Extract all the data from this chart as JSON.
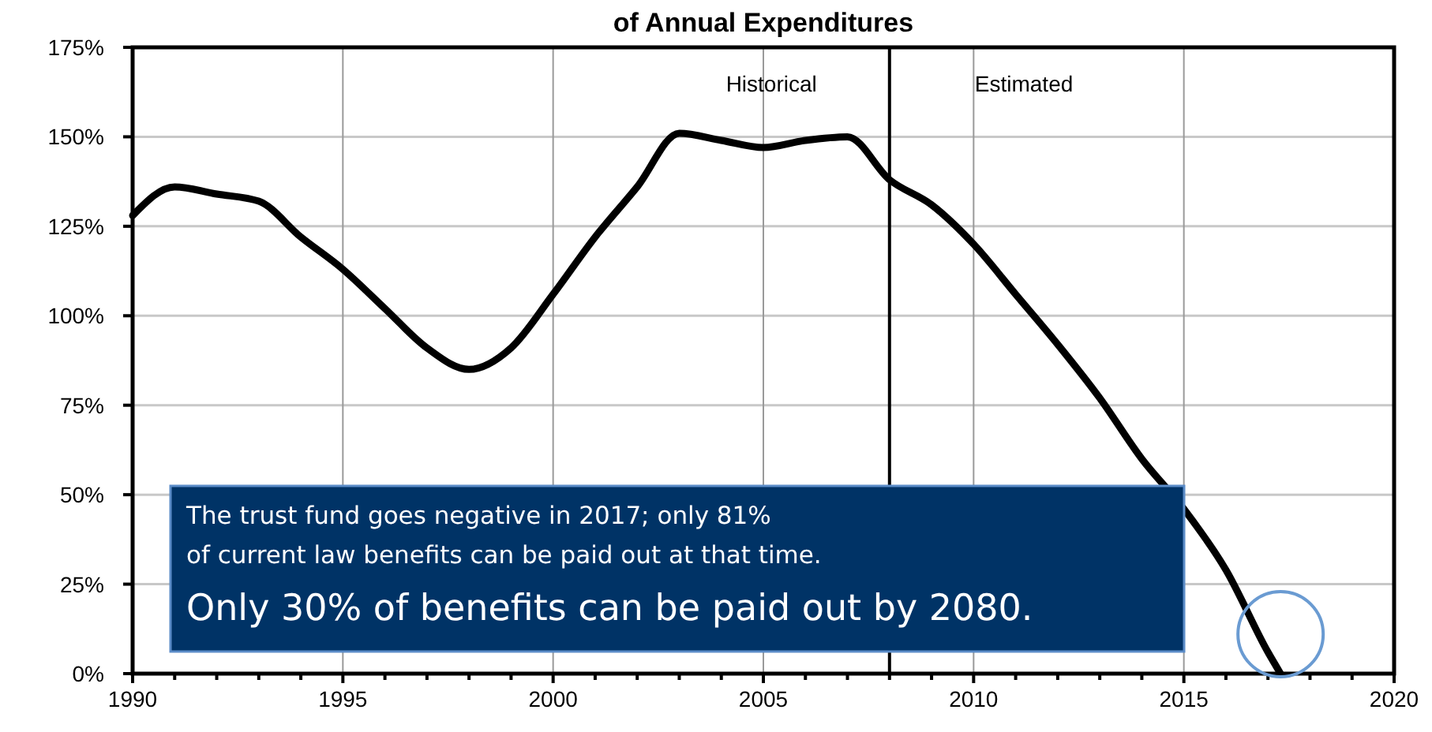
{
  "chart_data": {
    "type": "line",
    "title": "of Annual Expenditures",
    "x": [
      1990,
      1991,
      1992,
      1993,
      1994,
      1995,
      1996,
      1997,
      1998,
      1999,
      2000,
      2001,
      2002,
      2003,
      2004,
      2005,
      2006,
      2007,
      2008,
      2009,
      2010,
      2011,
      2012,
      2013,
      2014,
      2015,
      2016,
      2017,
      2017.3
    ],
    "series": [
      {
        "color": "#000000",
        "values": [
          128,
          136,
          134,
          132,
          122,
          113,
          102,
          91,
          85,
          91,
          106,
          122,
          136,
          151,
          149,
          147,
          149,
          150,
          138,
          131,
          120,
          106,
          92,
          77,
          60,
          46,
          29,
          6,
          0
        ]
      }
    ],
    "xlim": [
      1990,
      2020
    ],
    "xticks": [
      1990,
      {
        "value": 1991,
        "label": null
      },
      {
        "value": 1992,
        "label": null
      },
      {
        "value": 1993,
        "label": null
      },
      {
        "value": 1994,
        "label": null
      },
      1995,
      {
        "value": 1996,
        "label": null
      },
      {
        "value": 1997,
        "label": null
      },
      {
        "value": 1998,
        "label": null
      },
      {
        "value": 1999,
        "label": null
      },
      2000,
      {
        "value": 2001,
        "label": null
      },
      {
        "value": 2002,
        "label": null
      },
      {
        "value": 2003,
        "label": null
      },
      {
        "value": 2004,
        "label": null
      },
      2005,
      {
        "value": 2006,
        "label": null
      },
      {
        "value": 2007,
        "label": null
      },
      {
        "value": 2008,
        "label": null
      },
      {
        "value": 2009,
        "label": null
      },
      2010,
      {
        "value": 2011,
        "label": null
      },
      {
        "value": 2012,
        "label": null
      },
      {
        "value": 2013,
        "label": null
      },
      {
        "value": 2014,
        "label": null
      },
      2015,
      {
        "value": 2016,
        "label": null
      },
      {
        "value": 2017,
        "label": null
      },
      {
        "value": 2018,
        "label": null
      },
      {
        "value": 2019,
        "label": null
      },
      2020
    ],
    "ylim": [
      0,
      175
    ],
    "yticks": [
      {
        "value": 0,
        "label": "0%"
      },
      {
        "value": 25,
        "label": "25%"
      },
      {
        "value": 50,
        "label": "50%"
      },
      {
        "value": 75,
        "label": "75%"
      },
      {
        "value": 100,
        "label": "100%"
      },
      {
        "value": 125,
        "label": "125%"
      },
      {
        "value": 150,
        "label": "150%"
      },
      {
        "value": 175,
        "label": "175%"
      }
    ],
    "grid": true,
    "marker": "none",
    "line_style": "solid",
    "ref_lines": [
      {
        "axis": "x",
        "value": 2008,
        "color": "#000000"
      }
    ],
    "annotations": [
      "Historical",
      "Estimated",
      "The trust fund goes negative in 2017; only 81%\nof current law benefits can be paid out at that time.",
      "Only 30% of benefits can be paid out by 2080."
    ]
  }
}
